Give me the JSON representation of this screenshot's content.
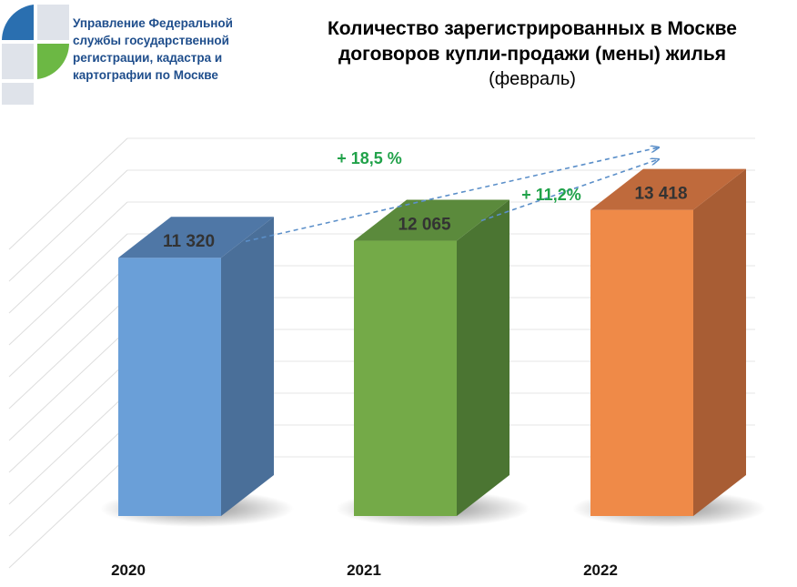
{
  "header": {
    "org_lines": [
      "Управление Федеральной",
      "службы государственной",
      "регистрации, кадастра и",
      "картографии по Москве"
    ]
  },
  "chart_data": {
    "type": "bar",
    "title_lines": [
      "Количество зарегистрированных в Москве",
      "договоров купли-продажи (мены) жилья"
    ],
    "subtitle": "(февраль)",
    "categories": [
      "2020",
      "2021",
      "2022"
    ],
    "values": [
      11320,
      12065,
      13418
    ],
    "value_labels": [
      "11 320",
      "12 065",
      "13 418"
    ],
    "annotations": [
      {
        "text": "+ 18,5 %",
        "from": "2020",
        "to": "2022"
      },
      {
        "text": "+ 11,2%",
        "from": "2021",
        "to": "2022"
      }
    ],
    "ylim": [
      0,
      14000
    ],
    "grid": true,
    "legend": "none",
    "colors": {
      "2020": {
        "front": "#6a9fd8",
        "side": "#4a6f99",
        "top": "#4f77a6"
      },
      "2021": {
        "front": "#74aa48",
        "side": "#4b7532",
        "top": "#5b8a3c"
      },
      "2022": {
        "front": "#ef8a48",
        "side": "#a85d34",
        "top": "#bf6a3c"
      },
      "growth_text": "#21a24a",
      "arrow": "#5b8fc9"
    }
  }
}
